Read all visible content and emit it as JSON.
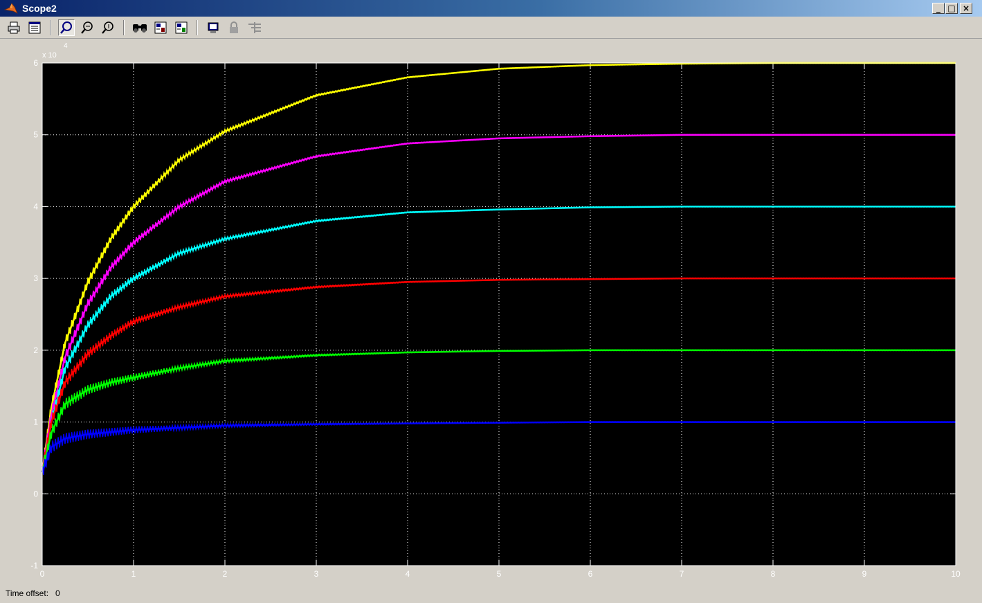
{
  "window": {
    "title": "Scope2",
    "buttons": [
      "_",
      "□",
      "×"
    ]
  },
  "toolbar": {
    "items": [
      "print-icon",
      "parameters-icon",
      "zoom-icon",
      "zoom-x-icon",
      "zoom-y-icon",
      "autoscale-icon",
      "save-axes-icon",
      "restore-axes-icon",
      "floating-scope-icon",
      "lock-axes-icon",
      "signal-selection-icon"
    ],
    "active_item": "zoom-icon"
  },
  "status": {
    "label": "Time offset:",
    "value": "0"
  },
  "chart_data": {
    "type": "line",
    "title": "",
    "xlabel": "",
    "ylabel": "",
    "xlim": [
      0,
      10
    ],
    "ylim": [
      -1,
      6
    ],
    "y_exponent_label": "x 10",
    "y_exponent": "4",
    "xticks": [
      "0",
      "1",
      "2",
      "3",
      "4",
      "5",
      "6",
      "7",
      "8",
      "9",
      "10"
    ],
    "yticks": [
      "-1",
      "0",
      "1",
      "2",
      "3",
      "4",
      "5",
      "6"
    ],
    "grid": true,
    "background": "#000000",
    "series": [
      {
        "color": "#ffff00",
        "x": [
          0,
          0.1,
          0.25,
          0.5,
          0.75,
          1,
          1.5,
          2,
          3,
          4,
          5,
          6,
          7,
          8,
          10
        ],
        "values": [
          0.3,
          1.2,
          2.1,
          2.95,
          3.55,
          4.0,
          4.65,
          5.05,
          5.55,
          5.8,
          5.92,
          5.97,
          5.99,
          6.0,
          6.0
        ]
      },
      {
        "color": "#ff00ff",
        "x": [
          0,
          0.1,
          0.25,
          0.5,
          0.75,
          1,
          1.5,
          2,
          3,
          4,
          5,
          6,
          7,
          8,
          10
        ],
        "values": [
          0.3,
          1.1,
          1.9,
          2.65,
          3.15,
          3.5,
          4.0,
          4.35,
          4.7,
          4.88,
          4.95,
          4.98,
          5.0,
          5.0,
          5.0
        ]
      },
      {
        "color": "#00ffff",
        "x": [
          0,
          0.1,
          0.25,
          0.5,
          0.75,
          1,
          1.5,
          2,
          3,
          4,
          5,
          6,
          7,
          8,
          10
        ],
        "values": [
          0.3,
          1.0,
          1.75,
          2.35,
          2.75,
          3.0,
          3.35,
          3.55,
          3.8,
          3.92,
          3.96,
          3.99,
          4.0,
          4.0,
          4.0
        ]
      },
      {
        "color": "#ff0000",
        "x": [
          0,
          0.1,
          0.25,
          0.5,
          0.75,
          1,
          1.5,
          2,
          3,
          4,
          5,
          6,
          7,
          8,
          10
        ],
        "values": [
          0.3,
          1.0,
          1.55,
          1.95,
          2.2,
          2.4,
          2.6,
          2.75,
          2.88,
          2.95,
          2.98,
          2.99,
          3.0,
          3.0,
          3.0
        ]
      },
      {
        "color": "#00ff00",
        "x": [
          0,
          0.1,
          0.25,
          0.5,
          0.75,
          1,
          1.5,
          2,
          3,
          4,
          5,
          6,
          7,
          8,
          10
        ],
        "values": [
          0.3,
          0.85,
          1.25,
          1.45,
          1.55,
          1.62,
          1.75,
          1.85,
          1.93,
          1.97,
          1.99,
          2.0,
          2.0,
          2.0,
          2.0
        ]
      },
      {
        "color": "#0000ff",
        "x": [
          0,
          0.1,
          0.25,
          0.5,
          0.75,
          1,
          1.5,
          2,
          3,
          4,
          5,
          6,
          7,
          8,
          10
        ],
        "values": [
          0.3,
          0.65,
          0.77,
          0.83,
          0.86,
          0.89,
          0.92,
          0.95,
          0.97,
          0.98,
          0.99,
          1.0,
          1.0,
          1.0,
          1.0
        ]
      }
    ]
  }
}
